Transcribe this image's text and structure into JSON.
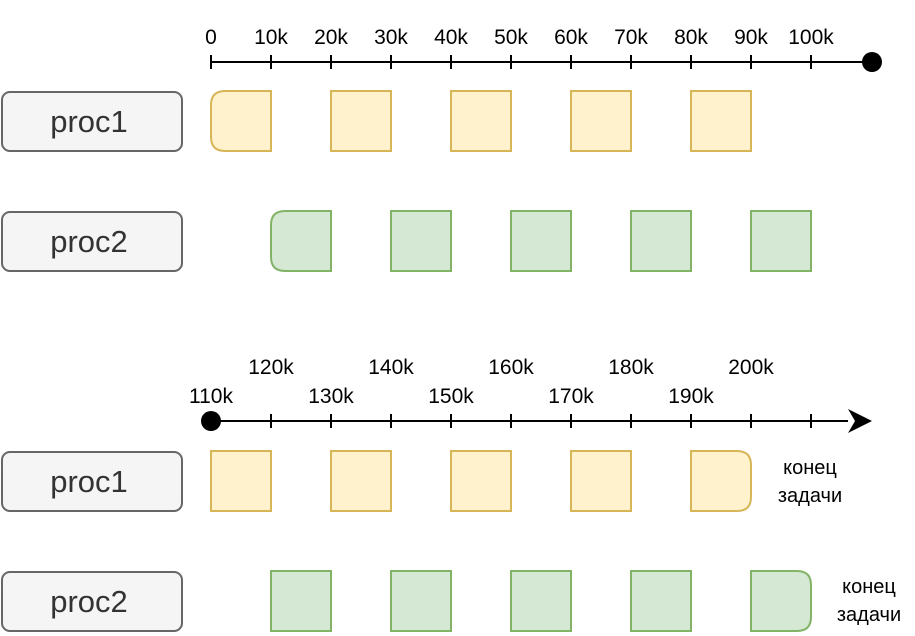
{
  "colors": {
    "axis": "#000000",
    "proc_box_fill": "#f5f5f5",
    "proc_box_stroke": "#666666",
    "proc_text": "#333333",
    "proc1_fill": "#fff2cc",
    "proc1_stroke": "#d6b656",
    "proc2_fill": "#d5e8d4",
    "proc2_stroke": "#82b366"
  },
  "timeline_top": {
    "ticks": [
      "0",
      "10k",
      "20k",
      "30k",
      "40k",
      "50k",
      "60k",
      "70k",
      "80k",
      "90k",
      "100k"
    ],
    "proc1_label": "proc1",
    "proc2_label": "proc2"
  },
  "timeline_bottom": {
    "ticks_upper": [
      "120k",
      "140k",
      "160k",
      "180k",
      "200k"
    ],
    "ticks_lower": [
      "110k",
      "130k",
      "150k",
      "170k",
      "190k"
    ],
    "proc1_label": "proc1",
    "proc2_label": "proc2",
    "proc1_end_note": [
      "конец",
      "задачи"
    ],
    "proc2_end_note": [
      "конец",
      "задачи"
    ]
  }
}
